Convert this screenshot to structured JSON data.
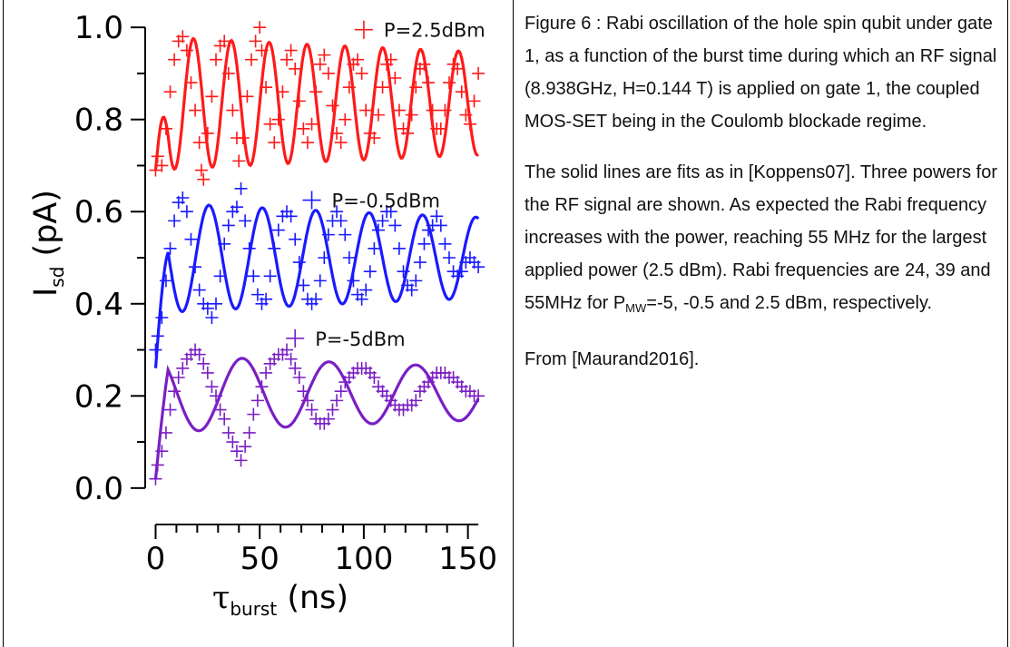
{
  "caption": {
    "paragraph1": "Figure 6 : Rabi oscillation of the hole spin qubit under gate 1, as a function of the burst time during which an RF signal (8.938GHz, H=0.144 T) is applied on gate 1, the coupled MOS-SET being in the Coulomb blockade regime.",
    "paragraph2": "The solid lines are fits as in [Koppens07]. Three powers for the RF signal are shown. As expected the Rabi frequency increases with the power, reaching 55 MHz for the largest applied power (2.5 dBm). Rabi frequencies are 24, 39 and 55MHz for ",
    "pmw_main": "P",
    "pmw_sub": "MW",
    "paragraph2_tail": "=-5, -0.5 and 2.5 dBm, respectively.",
    "paragraph3": "From [Maurand2016]."
  },
  "chart_data": {
    "type": "scatter",
    "xlabel_main": "τ",
    "xlabel_sub": "burst",
    "xlabel_unit": " (ns)",
    "ylabel_main": "I",
    "ylabel_sub": "sd",
    "ylabel_unit": " (pA)",
    "xlim": [
      -5,
      158
    ],
    "ylim": [
      -0.02,
      1.02
    ],
    "xticks": [
      0,
      50,
      100,
      150
    ],
    "yticks": [
      0.0,
      0.2,
      0.4,
      0.6,
      0.8,
      1.0
    ],
    "ytick_labels": [
      "0.0",
      "0.2",
      "0.4",
      "0.6",
      "0.8",
      "1.0"
    ],
    "grid": false,
    "series": [
      {
        "name": "P=2.5dBm",
        "color": "#ff1a1a",
        "fit": {
          "offset": 0.835,
          "amplitude": 0.145,
          "frequency_mhz": 55,
          "decay_ns": 600,
          "start_value": 0.69
        },
        "points": [
          [
            0,
            0.69
          ],
          [
            1,
            0.72
          ],
          [
            3,
            0.7
          ],
          [
            5,
            0.78
          ],
          [
            7,
            0.86
          ],
          [
            9,
            0.93
          ],
          [
            11,
            0.97
          ],
          [
            13,
            0.98
          ],
          [
            15,
            0.95
          ],
          [
            17,
            0.88
          ],
          [
            19,
            0.82
          ],
          [
            21,
            0.75
          ],
          [
            22,
            0.69
          ],
          [
            23,
            0.67
          ],
          [
            25,
            0.77
          ],
          [
            27,
            0.85
          ],
          [
            29,
            0.93
          ],
          [
            31,
            0.96
          ],
          [
            33,
            0.97
          ],
          [
            35,
            0.9
          ],
          [
            37,
            0.82
          ],
          [
            39,
            0.76
          ],
          [
            40,
            0.71
          ],
          [
            42,
            0.76
          ],
          [
            44,
            0.85
          ],
          [
            46,
            0.93
          ],
          [
            48,
            0.97
          ],
          [
            50,
            1.0
          ],
          [
            51,
            0.95
          ],
          [
            53,
            0.87
          ],
          [
            55,
            0.79
          ],
          [
            57,
            0.75
          ],
          [
            59,
            0.8
          ],
          [
            61,
            0.86
          ],
          [
            63,
            0.93
          ],
          [
            65,
            0.95
          ],
          [
            67,
            0.91
          ],
          [
            69,
            0.84
          ],
          [
            71,
            0.78
          ],
          [
            73,
            0.75
          ],
          [
            75,
            0.79
          ],
          [
            77,
            0.86
          ],
          [
            79,
            0.92
          ],
          [
            81,
            0.94
          ],
          [
            83,
            0.9
          ],
          [
            85,
            0.83
          ],
          [
            87,
            0.77
          ],
          [
            89,
            0.75
          ],
          [
            91,
            0.8
          ],
          [
            93,
            0.87
          ],
          [
            95,
            0.92
          ],
          [
            97,
            0.93
          ],
          [
            99,
            0.9
          ],
          [
            101,
            0.82
          ],
          [
            103,
            0.77
          ],
          [
            105,
            0.76
          ],
          [
            107,
            0.81
          ],
          [
            109,
            0.87
          ],
          [
            111,
            0.92
          ],
          [
            113,
            0.93
          ],
          [
            115,
            0.89
          ],
          [
            117,
            0.82
          ],
          [
            119,
            0.78
          ],
          [
            121,
            0.77
          ],
          [
            123,
            0.81
          ],
          [
            125,
            0.87
          ],
          [
            127,
            0.91
          ],
          [
            129,
            0.92
          ],
          [
            131,
            0.88
          ],
          [
            133,
            0.82
          ],
          [
            135,
            0.78
          ],
          [
            137,
            0.78
          ],
          [
            139,
            0.82
          ],
          [
            141,
            0.88
          ],
          [
            143,
            0.92
          ],
          [
            145,
            0.91
          ],
          [
            147,
            0.86
          ],
          [
            149,
            0.81
          ],
          [
            151,
            0.79
          ],
          [
            153,
            0.84
          ],
          [
            155,
            0.9
          ]
        ]
      },
      {
        "name": "P=-0.5dBm",
        "color": "#1a1aff",
        "fit": {
          "offset": 0.5,
          "amplitude": 0.12,
          "frequency_mhz": 39,
          "decay_ns": 500,
          "start_value": 0.26
        },
        "points": [
          [
            0,
            0.3
          ],
          [
            1,
            0.33
          ],
          [
            3,
            0.37
          ],
          [
            5,
            0.45
          ],
          [
            7,
            0.52
          ],
          [
            9,
            0.58
          ],
          [
            11,
            0.62
          ],
          [
            13,
            0.63
          ],
          [
            15,
            0.6
          ],
          [
            17,
            0.54
          ],
          [
            19,
            0.48
          ],
          [
            21,
            0.43
          ],
          [
            23,
            0.4
          ],
          [
            25,
            0.39
          ],
          [
            27,
            0.37
          ],
          [
            29,
            0.4
          ],
          [
            31,
            0.46
          ],
          [
            33,
            0.53
          ],
          [
            35,
            0.57
          ],
          [
            37,
            0.6
          ],
          [
            39,
            0.61
          ],
          [
            41,
            0.65
          ],
          [
            43,
            0.58
          ],
          [
            45,
            0.52
          ],
          [
            47,
            0.46
          ],
          [
            49,
            0.42
          ],
          [
            51,
            0.4
          ],
          [
            53,
            0.41
          ],
          [
            55,
            0.46
          ],
          [
            57,
            0.52
          ],
          [
            59,
            0.56
          ],
          [
            61,
            0.59
          ],
          [
            63,
            0.6
          ],
          [
            65,
            0.59
          ],
          [
            67,
            0.54
          ],
          [
            69,
            0.49
          ],
          [
            71,
            0.44
          ],
          [
            73,
            0.41
          ],
          [
            75,
            0.4
          ],
          [
            77,
            0.41
          ],
          [
            79,
            0.45
          ],
          [
            81,
            0.5
          ],
          [
            83,
            0.55
          ],
          [
            85,
            0.58
          ],
          [
            87,
            0.6
          ],
          [
            89,
            0.58
          ],
          [
            91,
            0.55
          ],
          [
            93,
            0.5
          ],
          [
            95,
            0.45
          ],
          [
            97,
            0.42
          ],
          [
            99,
            0.41
          ],
          [
            101,
            0.43
          ],
          [
            103,
            0.47
          ],
          [
            105,
            0.52
          ],
          [
            107,
            0.56
          ],
          [
            109,
            0.58
          ],
          [
            111,
            0.6
          ],
          [
            113,
            0.6
          ],
          [
            115,
            0.57
          ],
          [
            117,
            0.52
          ],
          [
            119,
            0.47
          ],
          [
            121,
            0.44
          ],
          [
            123,
            0.43
          ],
          [
            125,
            0.45
          ],
          [
            127,
            0.49
          ],
          [
            129,
            0.53
          ],
          [
            131,
            0.56
          ],
          [
            133,
            0.57
          ],
          [
            135,
            0.59
          ],
          [
            137,
            0.57
          ],
          [
            139,
            0.53
          ],
          [
            141,
            0.5
          ],
          [
            143,
            0.47
          ],
          [
            145,
            0.46
          ],
          [
            147,
            0.47
          ],
          [
            149,
            0.49
          ],
          [
            151,
            0.5
          ],
          [
            153,
            0.49
          ],
          [
            155,
            0.48
          ]
        ]
      },
      {
        "name": "P=-5dBm",
        "color": "#7a1fc4",
        "fit": {
          "offset": 0.205,
          "amplitude": 0.085,
          "frequency_mhz": 24,
          "decay_ns": 400,
          "start_value": 0.02
        },
        "points": [
          [
            0,
            0.02
          ],
          [
            1,
            0.05
          ],
          [
            3,
            0.08
          ],
          [
            5,
            0.12
          ],
          [
            7,
            0.17
          ],
          [
            9,
            0.21
          ],
          [
            11,
            0.24
          ],
          [
            13,
            0.26
          ],
          [
            15,
            0.28
          ],
          [
            17,
            0.29
          ],
          [
            19,
            0.3
          ],
          [
            21,
            0.29
          ],
          [
            23,
            0.27
          ],
          [
            25,
            0.25
          ],
          [
            27,
            0.22
          ],
          [
            29,
            0.2
          ],
          [
            31,
            0.17
          ],
          [
            33,
            0.15
          ],
          [
            35,
            0.12
          ],
          [
            37,
            0.1
          ],
          [
            39,
            0.08
          ],
          [
            41,
            0.06
          ],
          [
            43,
            0.09
          ],
          [
            45,
            0.12
          ],
          [
            47,
            0.16
          ],
          [
            49,
            0.19
          ],
          [
            51,
            0.22
          ],
          [
            53,
            0.25
          ],
          [
            55,
            0.27
          ],
          [
            57,
            0.28
          ],
          [
            59,
            0.29
          ],
          [
            61,
            0.29
          ],
          [
            63,
            0.3
          ],
          [
            65,
            0.28
          ],
          [
            67,
            0.26
          ],
          [
            69,
            0.24
          ],
          [
            71,
            0.21
          ],
          [
            73,
            0.19
          ],
          [
            75,
            0.17
          ],
          [
            77,
            0.15
          ],
          [
            79,
            0.14
          ],
          [
            81,
            0.14
          ],
          [
            83,
            0.15
          ],
          [
            85,
            0.17
          ],
          [
            87,
            0.19
          ],
          [
            89,
            0.21
          ],
          [
            91,
            0.23
          ],
          [
            93,
            0.24
          ],
          [
            95,
            0.25
          ],
          [
            97,
            0.26
          ],
          [
            99,
            0.26
          ],
          [
            101,
            0.26
          ],
          [
            103,
            0.25
          ],
          [
            105,
            0.24
          ],
          [
            107,
            0.22
          ],
          [
            109,
            0.21
          ],
          [
            111,
            0.2
          ],
          [
            113,
            0.19
          ],
          [
            115,
            0.18
          ],
          [
            117,
            0.17
          ],
          [
            119,
            0.17
          ],
          [
            121,
            0.18
          ],
          [
            123,
            0.18
          ],
          [
            125,
            0.19
          ],
          [
            127,
            0.21
          ],
          [
            129,
            0.22
          ],
          [
            131,
            0.23
          ],
          [
            133,
            0.24
          ],
          [
            135,
            0.25
          ],
          [
            137,
            0.25
          ],
          [
            139,
            0.25
          ],
          [
            141,
            0.24
          ],
          [
            143,
            0.24
          ],
          [
            145,
            0.23
          ],
          [
            147,
            0.22
          ],
          [
            149,
            0.21
          ],
          [
            151,
            0.21
          ],
          [
            153,
            0.2
          ],
          [
            155,
            0.2
          ]
        ]
      }
    ]
  }
}
